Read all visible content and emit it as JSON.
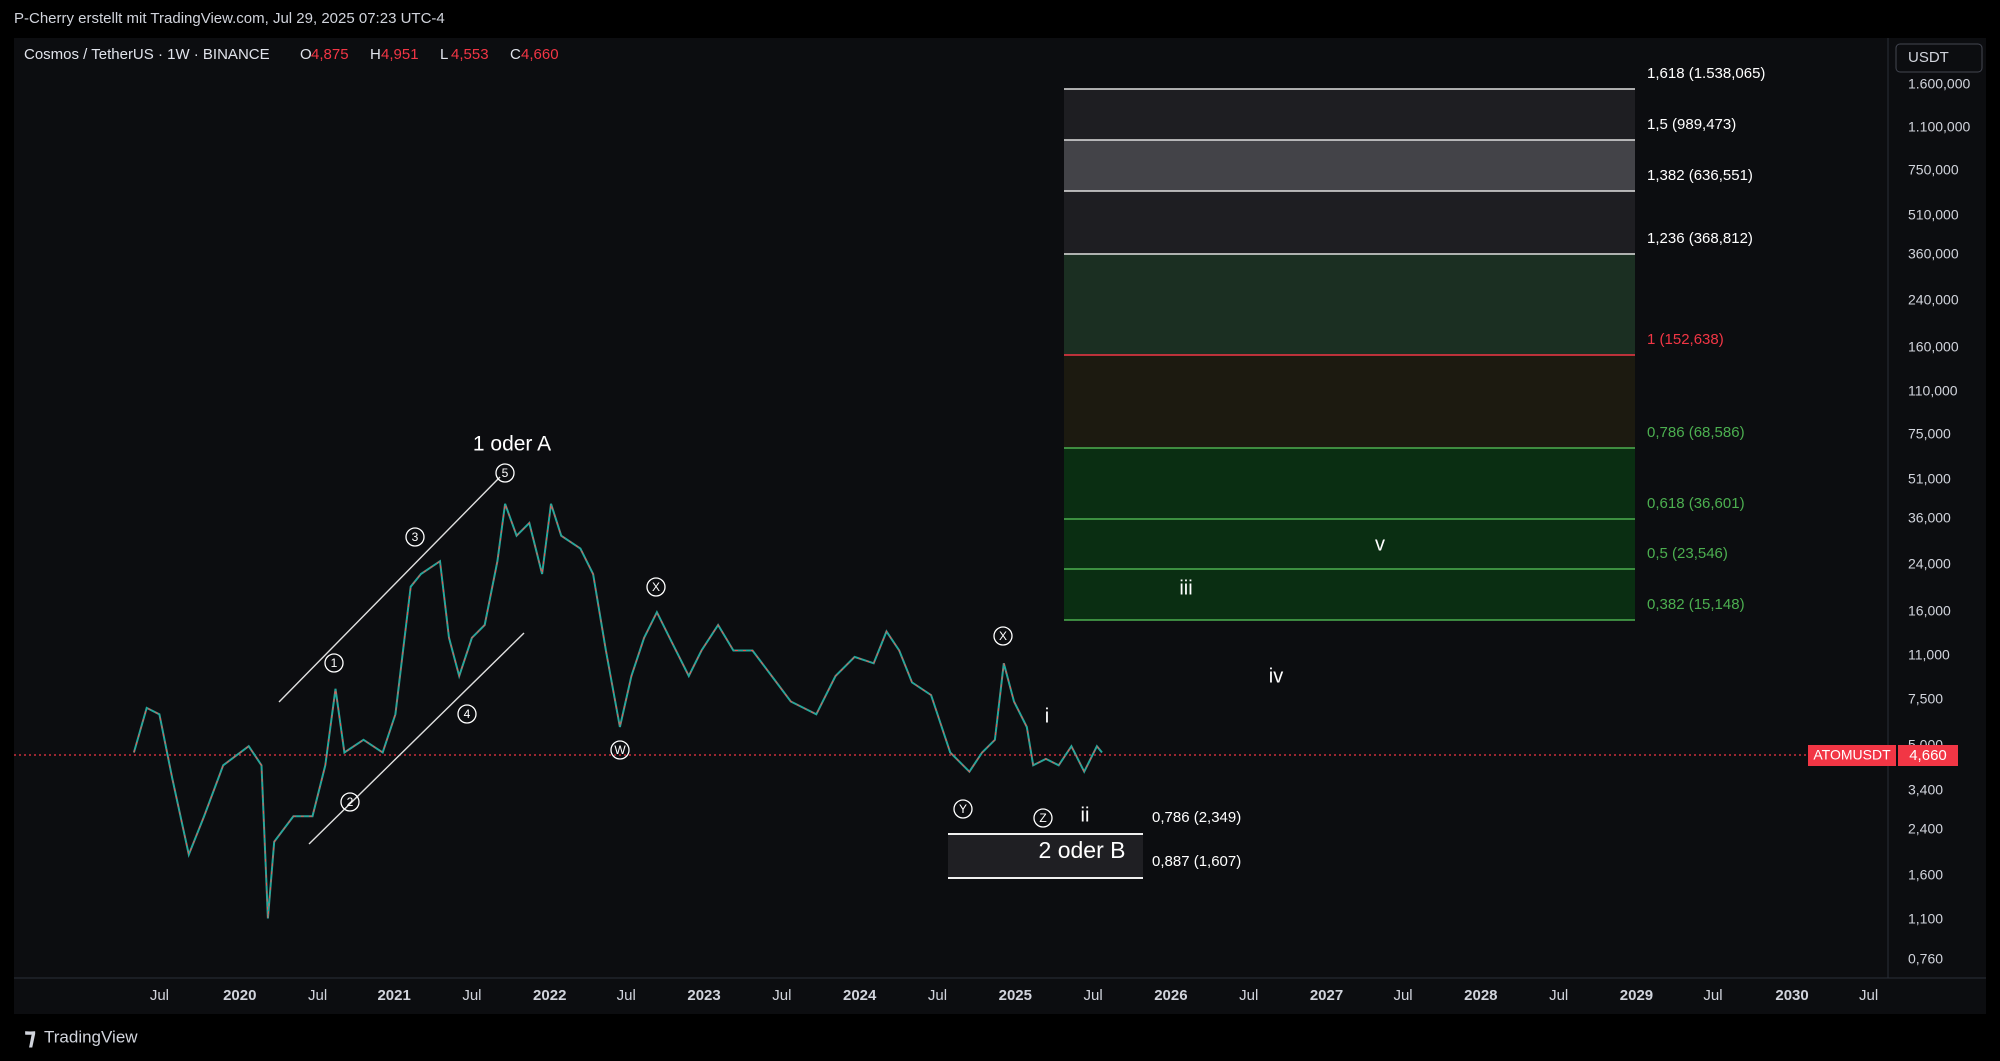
{
  "header": {
    "title": "P-Cherry erstellt mit TradingView.com, Jul 29, 2025 07:23 UTC-4"
  },
  "legend": {
    "symbol": "Cosmos / TetherUS · 1W · BINANCE",
    "ohlc": [
      {
        "label": "O",
        "value": "4,875"
      },
      {
        "label": "H",
        "value": "4,951"
      },
      {
        "label": "L",
        "value": "4,553"
      },
      {
        "label": "C",
        "value": "4,660"
      }
    ]
  },
  "price_axis": {
    "currency": "USDT",
    "labels": [
      "1.600,000",
      "1.100,000",
      "750,000",
      "510,000",
      "360,000",
      "240,000",
      "160,000",
      "110,000",
      "75,000",
      "51,000",
      "36,000",
      "24,000",
      "16,000",
      "11,000",
      "7,500",
      "5,000",
      "3,400",
      "2,400",
      "1,600",
      "1,100",
      "0,760"
    ],
    "badge_symbol": "ATOMUSDT",
    "badge_price": "4,660"
  },
  "time_axis": {
    "labels": [
      "Jul",
      "2020",
      "Jul",
      "2021",
      "Jul",
      "2022",
      "Jul",
      "2023",
      "Jul",
      "2024",
      "Jul",
      "2025",
      "Jul",
      "2026",
      "Jul",
      "2027",
      "Jul",
      "2028",
      "Jul",
      "2029",
      "Jul",
      "2030",
      "Jul"
    ]
  },
  "fib_upper": {
    "levels": [
      "1,618 (1.538,065)",
      "1,5 (989,473)",
      "1,382 (636,551)",
      "1,236 (368,812)",
      "1 (152,638)",
      "0,786 (68,586)",
      "0,618 (36,601)",
      "0,5 (23,546)",
      "0,382 (15,148)"
    ]
  },
  "fib_lower": {
    "levels": [
      "0,786 (2,349)",
      "0,887 (1,607)"
    ],
    "label": "2 oder B"
  },
  "annotations": {
    "wave_title": "1 oder A",
    "circled": [
      "1",
      "2",
      "3",
      "4",
      "5",
      "W",
      "X",
      "X",
      "Y",
      "Z"
    ],
    "plain": [
      "i",
      "ii",
      "iii",
      "iv",
      "v"
    ]
  },
  "footer": {
    "brand": "TradingView"
  }
}
